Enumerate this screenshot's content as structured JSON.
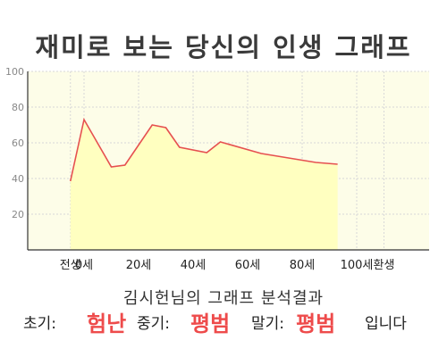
{
  "header": {
    "title": "재미로 보는 당신의 인생 그래프"
  },
  "chart_data": {
    "type": "area",
    "x": [
      -5,
      0,
      10,
      15,
      25,
      30,
      35,
      45,
      50,
      65,
      75,
      85,
      93
    ],
    "y": [
      38.5,
      73,
      46.5,
      47.5,
      70,
      68.5,
      57.5,
      54.5,
      60.5,
      54,
      51.5,
      49,
      48
    ],
    "xticks": [
      {
        "value": -5,
        "label": "전생"
      },
      {
        "value": 0,
        "label": "0세"
      },
      {
        "value": 20,
        "label": "20세"
      },
      {
        "value": 40,
        "label": "40세"
      },
      {
        "value": 60,
        "label": "60세"
      },
      {
        "value": 80,
        "label": "80세"
      },
      {
        "value": 100,
        "label": "100세"
      },
      {
        "value": 110,
        "label": "환생"
      }
    ],
    "yticks": [
      20,
      40,
      60,
      80,
      100
    ],
    "ylim": [
      0,
      100
    ],
    "grid": true,
    "line_color": "#e65050",
    "fill_color": "#ffffc0",
    "background_color": "#fdfde8"
  },
  "result": {
    "heading": "김시헌님의 그래프 분석결과",
    "early_label": "초기:",
    "early_value": "험난",
    "middle_label": "중기:",
    "middle_value": "평범",
    "late_label": "말기:",
    "late_value": "평범",
    "ending": "입니다"
  }
}
